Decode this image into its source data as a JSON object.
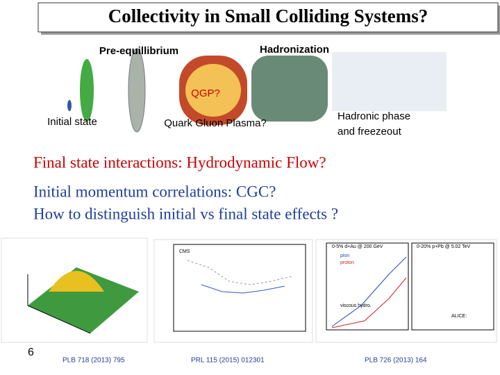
{
  "header": {
    "title": "Collectivity in Small Colliding Systems?"
  },
  "diagram": {
    "stages": [
      "Pre-equillibrium",
      "Hadronization"
    ],
    "qgp_question": "QGP?",
    "labels": [
      "Initial state",
      "Quark Gluon Plasma?",
      "Hadronic phase",
      "and freezeout"
    ]
  },
  "bullets": [
    "Final state interactions: Hydrodynamic Flow?",
    "Initial momentum correlations: CGC?",
    "How to distinguish initial vs final state effects ?"
  ],
  "figures": {
    "captions": [
      "PLB 718 (2013) 795",
      "PRL 115 (2015) 012301",
      "PLB 726 (2013) 164"
    ],
    "texts": [
      "CMS",
      "0-5% d+Au @ 200 GeV",
      "0-20% p+Pb @ 5.02 TeV",
      "pion",
      "proton",
      "viscous hydro.",
      "ALICE:"
    ]
  },
  "page_number": "6"
}
